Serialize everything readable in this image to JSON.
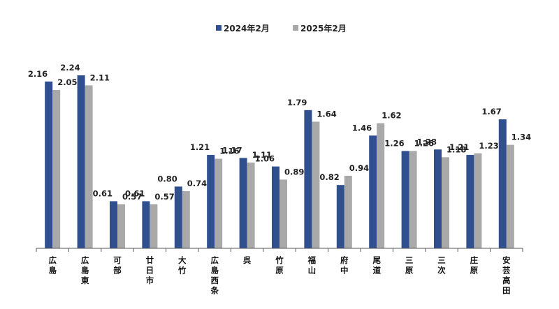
{
  "chart_data": {
    "type": "bar",
    "categories": [
      "広島",
      "広島東",
      "可部",
      "廿日市",
      "大竹",
      "広島西条",
      "呉",
      "竹原",
      "福山",
      "府中",
      "尾道",
      "三原",
      "三次",
      "庄原",
      "安芸高田"
    ],
    "series": [
      {
        "name": "2024年2月",
        "color": "#2f4f8f",
        "values": [
          2.16,
          2.24,
          0.61,
          0.61,
          0.8,
          1.21,
          1.17,
          1.06,
          1.79,
          0.82,
          1.46,
          1.26,
          1.28,
          1.21,
          1.67
        ]
      },
      {
        "name": "2025年2月",
        "color": "#a9a9a9",
        "values": [
          2.05,
          2.11,
          0.57,
          0.57,
          0.74,
          1.16,
          1.11,
          0.89,
          1.64,
          0.94,
          1.62,
          1.26,
          1.18,
          1.23,
          1.34
        ]
      }
    ],
    "value_labels": [
      [
        "2.16",
        "2.24",
        "0.61",
        "0.61",
        "0.80",
        "1.21",
        "1.17",
        "1.06",
        "1.79",
        "0.82",
        "1.46",
        "1.26",
        "1.28",
        "1.21",
        "1.67"
      ],
      [
        "2.05",
        "2.11",
        "0.57",
        "0.57",
        "0.74",
        "1.16",
        "1.11",
        "0.89",
        "1.64",
        "0.94",
        "1.62",
        "1.26",
        "1.18",
        "1.23",
        "1.34"
      ]
    ],
    "ylim": [
      0,
      2.24
    ],
    "legend_position": "top-center",
    "grid": false
  }
}
